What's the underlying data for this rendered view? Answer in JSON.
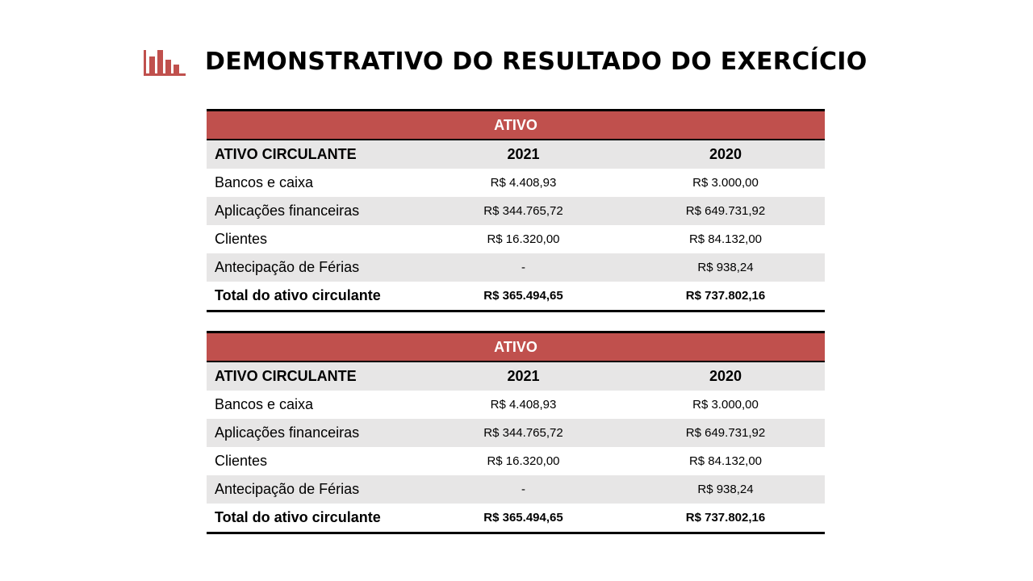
{
  "title": "DEMONSTRATIVO DO RESULTADO DO EXERCÍCIO",
  "icon": "bar-chart-icon",
  "accent_color": "#c0504d",
  "tables": [
    {
      "banner": "ATIVO",
      "header": [
        "ATIVO CIRCULANTE",
        "2021",
        "2020"
      ],
      "rows": [
        [
          "Bancos e caixa",
          "R$ 4.408,93",
          "R$ 3.000,00"
        ],
        [
          "Aplicações financeiras",
          "R$ 344.765,72",
          "R$ 649.731,92"
        ],
        [
          "Clientes",
          "R$ 16.320,00",
          "R$ 84.132,00"
        ],
        [
          "Antecipação de Férias",
          "-",
          "R$ 938,24"
        ]
      ],
      "total": [
        "Total do ativo circulante",
        "R$ 365.494,65",
        "R$ 737.802,16"
      ]
    },
    {
      "banner": "ATIVO",
      "header": [
        "ATIVO CIRCULANTE",
        "2021",
        "2020"
      ],
      "rows": [
        [
          "Bancos e caixa",
          "R$ 4.408,93",
          "R$ 3.000,00"
        ],
        [
          "Aplicações financeiras",
          "R$ 344.765,72",
          "R$ 649.731,92"
        ],
        [
          "Clientes",
          "R$ 16.320,00",
          "R$ 84.132,00"
        ],
        [
          "Antecipação de Férias",
          "-",
          "R$ 938,24"
        ]
      ],
      "total": [
        "Total do ativo circulante",
        "R$ 365.494,65",
        "R$ 737.802,16"
      ]
    }
  ]
}
